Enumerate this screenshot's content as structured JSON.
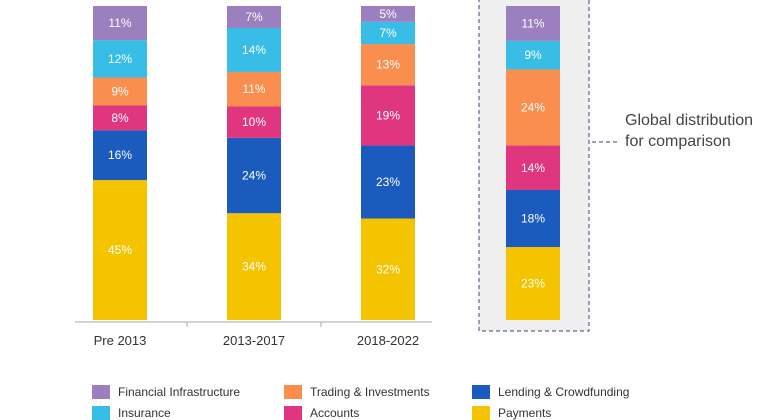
{
  "chart_data": {
    "type": "bar",
    "stacked": true,
    "categories": [
      "Pre 2013",
      "2013-2017",
      "2018-2022",
      ""
    ],
    "series": [
      {
        "name": "Payments",
        "color": "#f5c400",
        "values": [
          45,
          34,
          32,
          23
        ]
      },
      {
        "name": "Lending & Crowdfunding",
        "color": "#1a5bbd",
        "values": [
          16,
          24,
          23,
          18
        ]
      },
      {
        "name": "Accounts",
        "color": "#e0367f",
        "values": [
          8,
          10,
          19,
          14
        ]
      },
      {
        "name": "Trading & Investments",
        "color": "#f98e4f",
        "values": [
          9,
          11,
          13,
          24
        ]
      },
      {
        "name": "Insurance",
        "color": "#38bde6",
        "values": [
          12,
          14,
          7,
          9
        ]
      },
      {
        "name": "Financial Infrastructure",
        "color": "#9b7fbe",
        "values": [
          11,
          7,
          5,
          11
        ]
      }
    ],
    "data_labels": [
      [
        "45%",
        "34%",
        "32%",
        "23%"
      ],
      [
        "16%",
        "24%",
        "23%",
        "18%"
      ],
      [
        "8%",
        "10%",
        "19%",
        "14%"
      ],
      [
        "9%",
        "11%",
        "13%",
        "24%"
      ],
      [
        "12%",
        "14%",
        "7%",
        "9%"
      ],
      [
        "11%",
        "7%",
        "5%",
        "11%"
      ]
    ],
    "ylim": [
      0,
      100
    ],
    "grid": false,
    "legend_position": "bottom",
    "annotation": "Global distribution for comparison"
  },
  "note": {
    "text": "Global distribution for comparison"
  },
  "legend": [
    {
      "label": "Financial Infrastructure",
      "color": "#9b7fbe"
    },
    {
      "label": "Trading & Investments",
      "color": "#f98e4f"
    },
    {
      "label": "Lending & Crowdfunding",
      "color": "#1a5bbd"
    },
    {
      "label": "Insurance",
      "color": "#38bde6"
    },
    {
      "label": "Accounts",
      "color": "#e0367f"
    },
    {
      "label": "Payments",
      "color": "#f5c400"
    }
  ],
  "colors": {
    "highlight_box": "#efefef",
    "dashed_border": "#5a6a8a",
    "axis": "#aaaaaa"
  }
}
